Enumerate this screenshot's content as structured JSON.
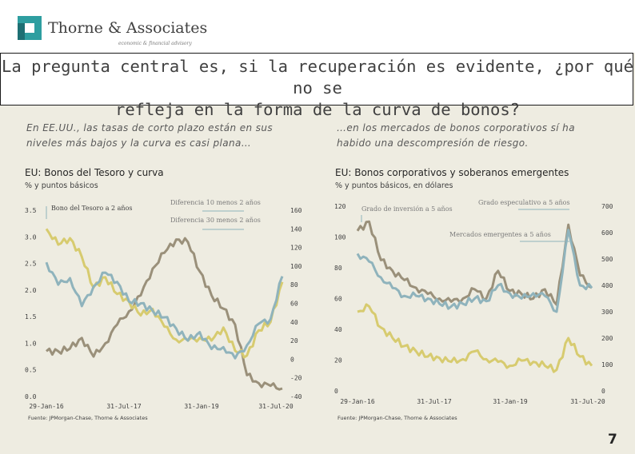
{
  "brand": {
    "name": "Thorne & Associates",
    "tagline": "economic & financial advisory",
    "colors": {
      "teal": "#2e9ea0",
      "teal_dark": "#1d6f73"
    }
  },
  "slide": {
    "title_line1": "La pregunta central es, si la recuperación es evidente, ¿por qué no se",
    "title_line2": "refleja en la forma de la curva de bonos?",
    "left_text_line1": "En EE.UU., las tasas de corto plazo están en sus",
    "left_text_line2": "niveles más bajos y la curva es casi plana…",
    "right_text_line1": "…en los mercados de bonos corporativos sí ha",
    "right_text_line2": "habido una descompresión de riesgo.",
    "page_number": "7"
  },
  "colors": {
    "olive": "#d7cb6f",
    "taupe": "#9a907a",
    "slate": "#8fb3bc",
    "background": "#eeece1"
  },
  "chart_data": [
    {
      "type": "line",
      "title": "EU: Bonos del Tesoro y curva",
      "subtitle": "% y puntos básicos",
      "source": "Fuente: JPMorgan-Chase, Thorne & Associates",
      "x_ticks": [
        "29-Jan-16",
        "31-Jul-17",
        "31-Jan-19",
        "31-Jul-20"
      ],
      "x_range": [
        "2016-01-29",
        "2020-07-31"
      ],
      "y_left_ticks": [
        "0.0",
        "0.5",
        "1.0",
        "1.5",
        "2.0",
        "2.5",
        "3.0",
        "3.5"
      ],
      "y_left_range": [
        0,
        3.5
      ],
      "y_right_ticks": [
        "-40",
        "-20",
        "0",
        "20",
        "40",
        "60",
        "80",
        "100",
        "120",
        "140",
        "160"
      ],
      "y_right_range": [
        -40,
        160
      ],
      "series": [
        {
          "name": "Bono del Tesoro a 2 años",
          "axis": "left",
          "color": "#9a907a",
          "values": [
            0.85,
            0.85,
            0.9,
            1.1,
            0.75,
            1.0,
            1.35,
            1.6,
            1.9,
            2.4,
            2.7,
            2.95,
            2.9,
            2.35,
            1.9,
            1.65,
            1.35,
            0.4,
            0.25,
            0.2,
            0.15
          ]
        },
        {
          "name": "Diferencia 10 menos 2 años",
          "axis": "right",
          "color": "#d7cb6f",
          "values": [
            140,
            123,
            130,
            110,
            77,
            88,
            70,
            62,
            47,
            54,
            35,
            21,
            20,
            23,
            20,
            34,
            9,
            4,
            31,
            40,
            83
          ]
        },
        {
          "name": "Diferencia 30 menos 2 años",
          "axis": "right",
          "color": "#8fb3bc",
          "values": [
            104,
            80,
            87,
            57,
            78,
            93,
            83,
            62,
            60,
            52,
            45,
            33,
            20,
            29,
            11,
            13,
            1,
            15,
            38,
            43,
            89
          ]
        }
      ]
    },
    {
      "type": "line",
      "title": "EU: Bonos corporativos y soberanos emergentes",
      "subtitle": "% y puntos básicos, en dólares",
      "source": "Fuente: JPMorgan-Chase, Thorne & Associates",
      "x_ticks": [
        "29-Jan-16",
        "31-Jul-17",
        "31-Jan-19",
        "31-Jul-20"
      ],
      "x_range": [
        "2016-01-29",
        "2020-07-31"
      ],
      "y_left_ticks": [
        "0",
        "20",
        "40",
        "60",
        "80",
        "100",
        "120"
      ],
      "y_left_range": [
        0,
        120
      ],
      "y_right_ticks": [
        "0",
        "100",
        "200",
        "300",
        "400",
        "500",
        "600",
        "700"
      ],
      "y_right_range": [
        0,
        700
      ],
      "series": [
        {
          "name": "Grado de inversión a 5 años",
          "axis": "left",
          "color": "#9a907a",
          "values": [
            104,
            110,
            85,
            78,
            72,
            67,
            63,
            60,
            58,
            60,
            66,
            60,
            78,
            65,
            63,
            60,
            66,
            56,
            108,
            75,
            67
          ]
        },
        {
          "name": "Grado especulativo a 5 años",
          "axis": "right",
          "color": "#d7cb6f",
          "values": [
            300,
            320,
            240,
            200,
            170,
            150,
            130,
            125,
            110,
            120,
            150,
            120,
            110,
            95,
            115,
            110,
            95,
            80,
            200,
            130,
            95
          ]
        },
        {
          "name": "Mercados emergentes a 5 años",
          "axis": "right",
          "color": "#8fb3bc",
          "values": [
            520,
            490,
            430,
            390,
            360,
            360,
            350,
            330,
            320,
            330,
            350,
            340,
            400,
            370,
            350,
            370,
            360,
            300,
            610,
            400,
            390
          ]
        }
      ]
    }
  ]
}
